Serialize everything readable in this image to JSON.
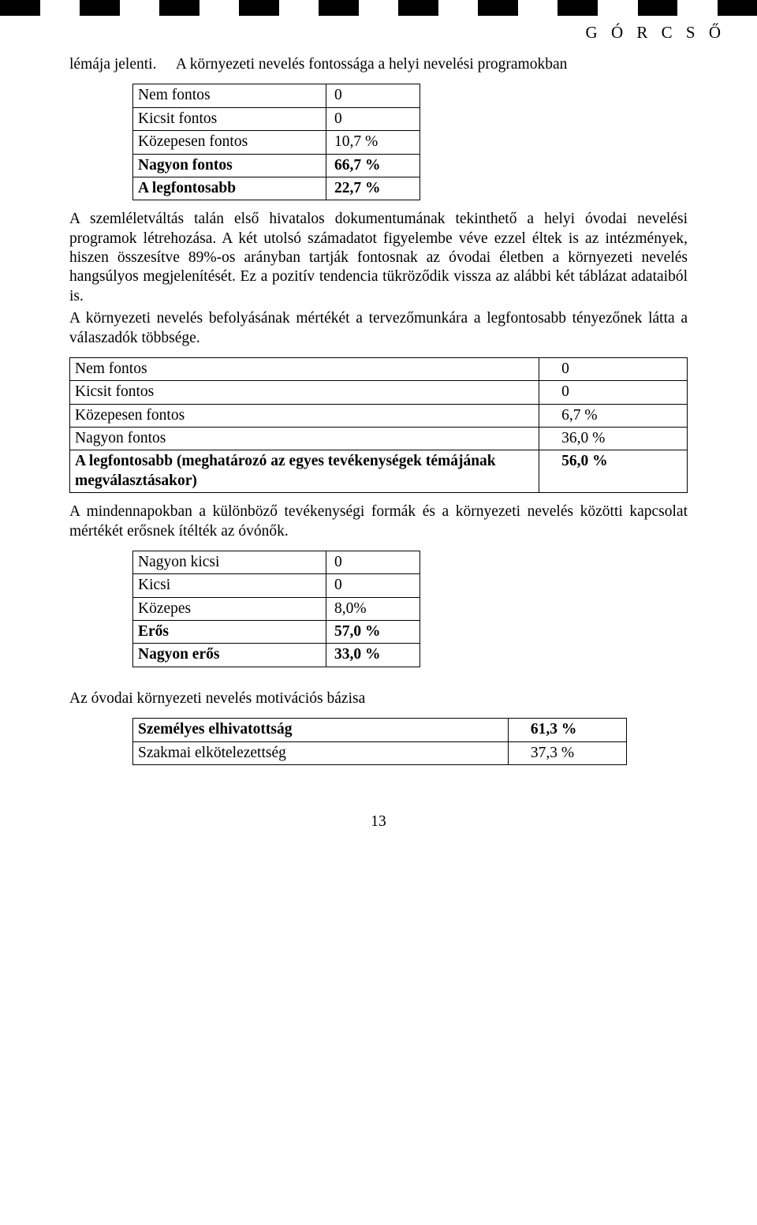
{
  "header_right": "G Ó R C S Ő",
  "para1_part1": "lémája jelenti.",
  "para1_part2": "A környezeti nevelés fontossága a helyi nevelési programokban",
  "table1": {
    "rows": [
      {
        "label": "Nem fontos",
        "value": "0",
        "bold": false
      },
      {
        "label": "Kicsit fontos",
        "value": "0",
        "bold": false
      },
      {
        "label": "Közepesen fontos",
        "value": "10,7 %",
        "bold": false
      },
      {
        "label": "Nagyon fontos",
        "value": "66,7 %",
        "bold": true
      },
      {
        "label": "A legfontosabb",
        "value": "22,7 %",
        "bold": true
      }
    ]
  },
  "para2": "A szemléletváltás talán első hivatalos dokumentumának tekinthető a helyi óvodai nevelési programok létrehozása. A két utolsó számadatot figyelembe véve ezzel éltek is az intézmények, hiszen összesítve 89%-os arányban tartják fontosnak az óvodai életben a környezeti nevelés hangsúlyos megjelenítését. Ez a pozitív tendencia tükröződik vissza az alábbi két táblázat adataiból is.",
  "para3": "A környezeti nevelés befolyásának mértékét a tervezőmunkára a legfontosabb tényezőnek látta a válaszadók többsége.",
  "table2": {
    "rows": [
      {
        "label": "Nem fontos",
        "value": "0",
        "bold": false
      },
      {
        "label": "Kicsit fontos",
        "value": "0",
        "bold": false
      },
      {
        "label": "Közepesen fontos",
        "value": "6,7 %",
        "bold": false
      },
      {
        "label": "Nagyon fontos",
        "value": "36,0 %",
        "bold": false
      },
      {
        "label": "A legfontosabb (meghatározó az egyes tevékenységek témájának megválasztásakor)",
        "value": "56,0 %",
        "bold": true
      }
    ]
  },
  "para4": "A mindennapokban a különböző tevékenységi formák és a környezeti nevelés közötti kapcsolat mértékét erősnek ítélték az óvónők.",
  "table3": {
    "rows": [
      {
        "label": "Nagyon kicsi",
        "value": "0",
        "bold": false
      },
      {
        "label": "Kicsi",
        "value": "0",
        "bold": false
      },
      {
        "label": "Közepes",
        "value": "8,0%",
        "bold": false
      },
      {
        "label": "Erős",
        "value": "57,0 %",
        "bold": true
      },
      {
        "label": "Nagyon erős",
        "value": "33,0 %",
        "bold": true
      }
    ]
  },
  "heading4": "Az óvodai környezeti nevelés motivációs bázisa",
  "table4": {
    "rows": [
      {
        "label": "Személyes elhivatottság",
        "value": "61,3 %",
        "bold": true
      },
      {
        "label": "Szakmai elkötelezettség",
        "value": "37,3 %",
        "bold": false
      }
    ]
  },
  "page_number": "13",
  "checker_squares": 19
}
